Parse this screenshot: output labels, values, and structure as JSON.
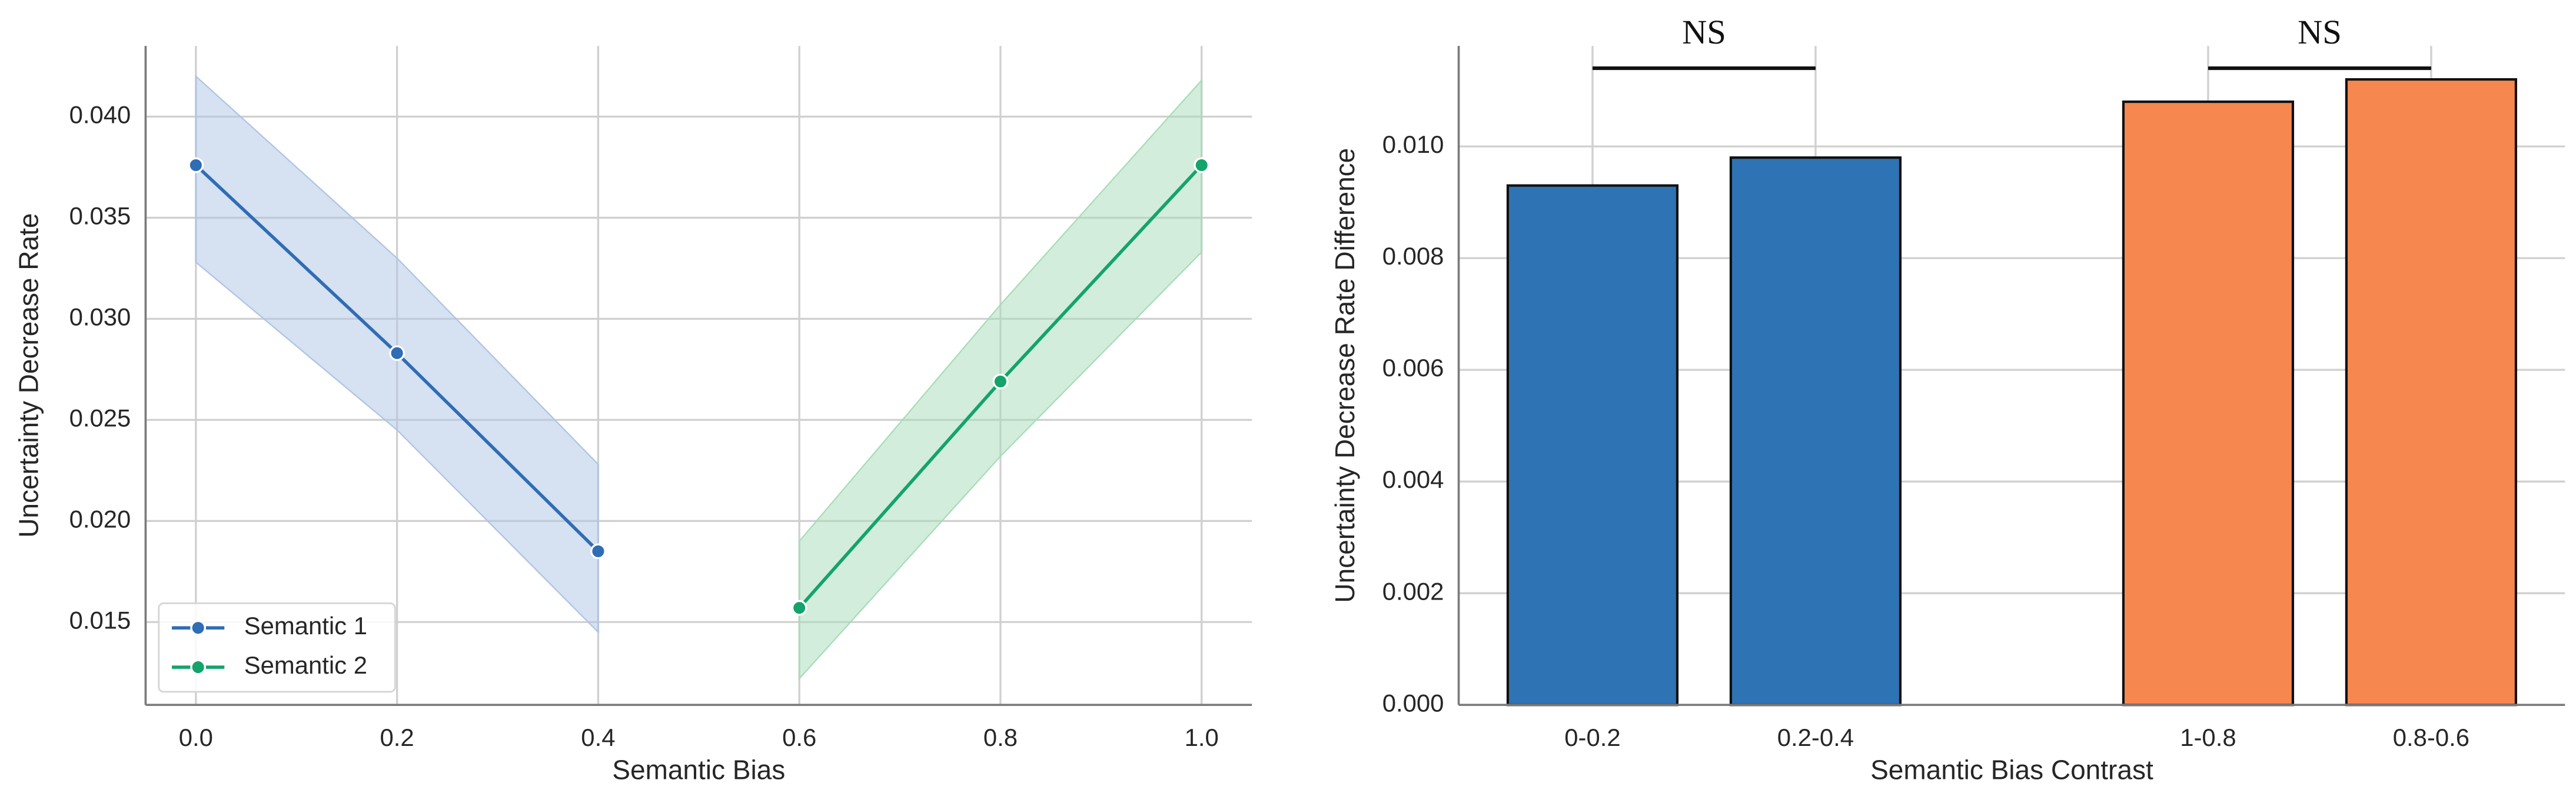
{
  "chart_data": [
    {
      "type": "line",
      "xlabel": "Semantic Bias",
      "ylabel": "Uncertainty Decrease Rate",
      "xlim": [
        -0.05,
        1.05
      ],
      "ylim": [
        0.0109,
        0.0435
      ],
      "xticks": [
        {
          "value": 0,
          "label": "0.0"
        },
        0.2,
        0.4,
        0.6,
        0.8,
        {
          "value": 1,
          "label": "1.0"
        }
      ],
      "yticks": [
        0.015,
        {
          "value": 0.02,
          "label": "0.020"
        },
        0.025,
        {
          "value": 0.03,
          "label": "0.030"
        },
        0.035,
        {
          "value": 0.04,
          "label": "0.040"
        }
      ],
      "grid": true,
      "legend": "lower left",
      "series": [
        {
          "name": "Semantic 1",
          "color": "#2f6db5",
          "band_color": "#aec4e4",
          "x": [
            0,
            0.2,
            0.4
          ],
          "values": [
            0.0376,
            0.0283,
            0.0185
          ],
          "lower": [
            0.0328,
            0.0245,
            0.0145
          ],
          "upper": [
            0.042,
            0.033,
            0.0228
          ]
        },
        {
          "name": "Semantic 2",
          "color": "#13a36b",
          "band_color": "#a6dcb8",
          "x": [
            0.6,
            0.8,
            1
          ],
          "values": [
            0.0157,
            0.0269,
            0.0376
          ],
          "lower": [
            0.0122,
            0.0232,
            0.0333
          ],
          "upper": [
            0.019,
            0.0307,
            0.0418
          ]
        }
      ]
    },
    {
      "type": "bar",
      "xlabel": "Semantic Bias Contrast",
      "ylabel": "Uncertainty Decrease Rate Difference",
      "categories": [
        "0-0.2",
        "0.2-0.4",
        "1-0.8",
        "0.8-0.6"
      ],
      "values": [
        0.0093,
        0.0098,
        0.0108,
        0.0112
      ],
      "colors": [
        "#2e73b4",
        "#2e73b4",
        "#f5874f",
        "#f5874f"
      ],
      "ylim": [
        0,
        0.0118
      ],
      "yticks": [
        {
          "value": 0,
          "label": "0.000"
        },
        0.002,
        0.004,
        0.006,
        0.008,
        {
          "value": 0.01,
          "label": "0.010"
        }
      ],
      "grid": true,
      "annotations": [
        {
          "text": "NS",
          "pair": [
            0,
            1
          ],
          "y": 0.0114
        },
        {
          "text": "NS",
          "pair": [
            2,
            3
          ],
          "y": 0.0114
        }
      ]
    }
  ]
}
